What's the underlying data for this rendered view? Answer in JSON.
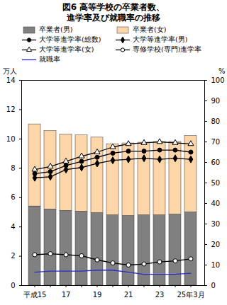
{
  "chart_data": {
    "type": "bar",
    "title": "図6 高等学校の卒業者数、\n進学率及び就職率の推移",
    "ylabel": "万人",
    "y2label": "%",
    "categories": [
      "平成15",
      null,
      "17",
      null,
      "19",
      null,
      "21",
      null,
      "23",
      null,
      "25年3月"
    ],
    "ylim": [
      0,
      14
    ],
    "yticks": [
      0,
      2,
      4,
      6,
      8,
      10,
      12,
      14
    ],
    "y2lim": [
      0,
      100
    ],
    "y2ticks": [
      0,
      10,
      20,
      30,
      40,
      50,
      60,
      70,
      80,
      90,
      100
    ],
    "stacked": true,
    "legend": "top",
    "series": [
      {
        "name": "卒業者(男)",
        "type": "bar",
        "color": "#808080",
        "values": [
          5.4,
          5.2,
          5.1,
          5.05,
          4.95,
          4.8,
          4.75,
          4.8,
          4.8,
          4.85,
          5.0
        ]
      },
      {
        "name": "卒業者(女)",
        "type": "bar",
        "color": "#fcd5a8",
        "values": [
          5.6,
          5.35,
          5.2,
          5.2,
          5.15,
          4.85,
          4.95,
          4.95,
          5.0,
          4.95,
          5.2
        ]
      },
      {
        "name": "大学等進学率(総数)",
        "type": "line",
        "axis": "y2",
        "color": "#000000",
        "marker": "filled_circle",
        "values": [
          54.5,
          55.5,
          58.5,
          60.5,
          62.5,
          64.5,
          65.5,
          65.5,
          66,
          66,
          65
        ]
      },
      {
        "name": "大学等進学率(男)",
        "type": "line",
        "axis": "y2",
        "color": "#000000",
        "marker": "filled_diamond",
        "values": [
          52.5,
          53,
          56.5,
          57.5,
          59.5,
          61,
          61.5,
          62,
          61.5,
          62,
          61.5
        ]
      },
      {
        "name": "大学等進学率(女)",
        "type": "line",
        "axis": "y2",
        "color": "#000000",
        "marker": "open_triangle",
        "values": [
          56.5,
          58,
          60.5,
          63,
          65,
          67.5,
          69,
          69.5,
          70,
          69.5,
          69
        ]
      },
      {
        "name": "専修学校(専門)進学率",
        "type": "line",
        "axis": "y2",
        "color": "#000000",
        "marker": "open_circle",
        "values": [
          15,
          15.5,
          15,
          14.5,
          12.5,
          11,
          10,
          10.5,
          11.5,
          12,
          13
        ]
      },
      {
        "name": "就職率",
        "type": "line",
        "axis": "y2",
        "color": "#2b2bc8",
        "marker": "none",
        "values": [
          6.5,
          7,
          7,
          7,
          7.5,
          7.5,
          6.5,
          5.5,
          5.5,
          5.5,
          6
        ]
      }
    ]
  }
}
